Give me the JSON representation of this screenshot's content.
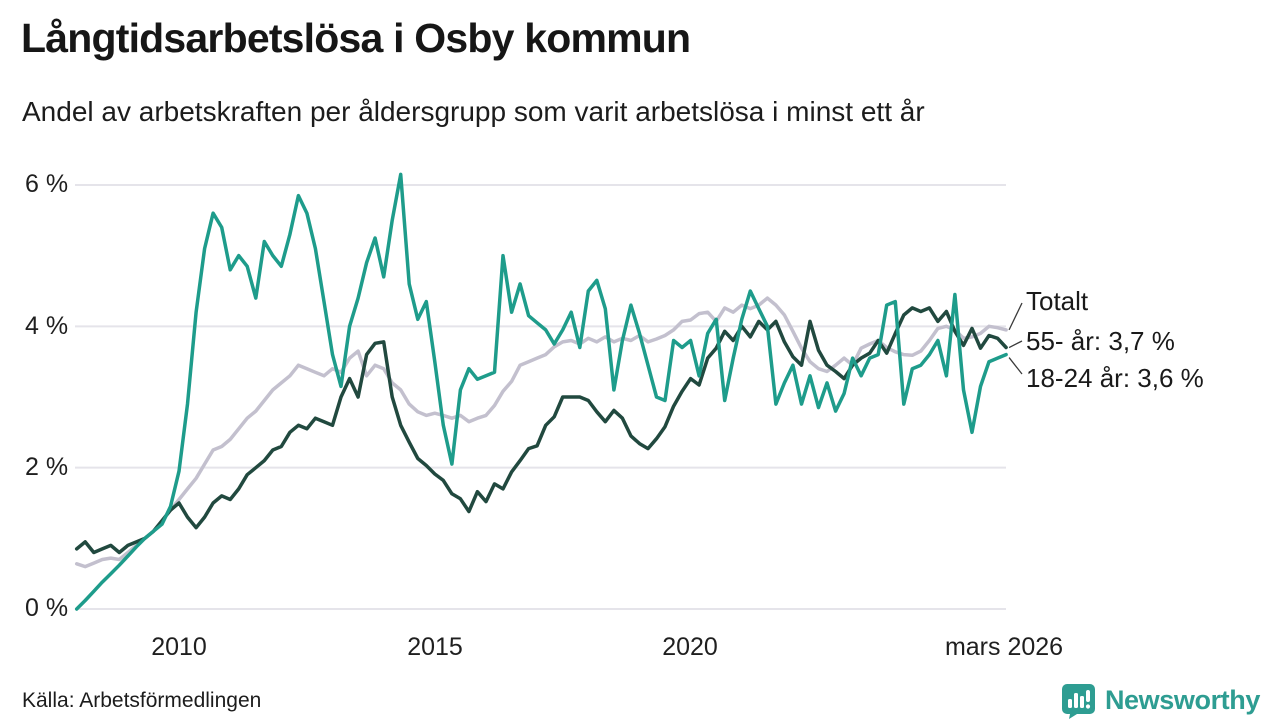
{
  "footer": {
    "brand": "Newsworthy"
  },
  "icons": {
    "brand_logo": "speech-bubble-with-bar-chart-and-exclamation"
  },
  "colors": {
    "background": "#ffffff",
    "brand_teal": "#2E9D92",
    "text": "#1a1a1a"
  },
  "chart_data": {
    "type": "line",
    "title": "Långtidsarbetslösa i Osby kommun",
    "subtitle": "Andel av arbetskraften per åldersgrupp som varit arbetslösa i minst ett år",
    "source": "Källa: Arbetsförmedlingen",
    "grid": true,
    "grid_color": "#E5E4EA",
    "legend_position": "right-end-labels",
    "ylim": [
      0,
      6.4
    ],
    "x_start": 2008.0,
    "x_end": 2026.17,
    "x_unit": "year (monthly samples, Jan 2008 – Mar 2026)",
    "y_unit": "percent of labour force",
    "y_ticks": [
      {
        "value": 0,
        "label": "0 %"
      },
      {
        "value": 2,
        "label": "2 %"
      },
      {
        "value": 4,
        "label": "4 %"
      },
      {
        "value": 6,
        "label": "6 %"
      }
    ],
    "x_ticks": [
      {
        "value": 2010,
        "label": "2010"
      },
      {
        "value": 2015,
        "label": "2015"
      },
      {
        "value": 2020,
        "label": "2020"
      },
      {
        "value": 2026.17,
        "label": "mars 2026"
      }
    ],
    "series": [
      {
        "name": "Totalt",
        "end_label": "Totalt",
        "last_value": 3.95,
        "color": "#C3C0CE",
        "values": [
          0.64,
          0.6,
          0.65,
          0.7,
          0.72,
          0.7,
          0.8,
          0.9,
          1,
          1.1,
          1.25,
          1.4,
          1.55,
          1.7,
          1.85,
          2.05,
          2.25,
          2.3,
          2.4,
          2.55,
          2.7,
          2.8,
          2.95,
          3.1,
          3.2,
          3.3,
          3.45,
          3.4,
          3.35,
          3.3,
          3.4,
          3.35,
          3.55,
          3.65,
          3.3,
          3.45,
          3.4,
          3.2,
          3.1,
          2.9,
          2.79,
          2.74,
          2.77,
          2.74,
          2.7,
          2.74,
          2.65,
          2.7,
          2.74,
          2.88,
          3.08,
          3.22,
          3.45,
          3.5,
          3.55,
          3.6,
          3.71,
          3.78,
          3.8,
          3.75,
          3.83,
          3.78,
          3.85,
          3.78,
          3.83,
          3.8,
          3.87,
          3.78,
          3.82,
          3.87,
          3.95,
          4.07,
          4.09,
          4.18,
          4.2,
          4.07,
          4.26,
          4.2,
          4.3,
          4.25,
          4.3,
          4.4,
          4.3,
          4.16,
          3.93,
          3.69,
          3.5,
          3.4,
          3.36,
          3.45,
          3.55,
          3.45,
          3.69,
          3.75,
          3.8,
          3.7,
          3.64,
          3.6,
          3.59,
          3.65,
          3.8,
          3.97,
          4,
          3.95,
          3.83,
          3.85,
          3.9,
          4,
          3.98,
          3.95
        ]
      },
      {
        "name": "55- år",
        "end_label": "55- år: 3,7 %",
        "last_value": 3.7,
        "color": "#21493F",
        "values": [
          0.85,
          0.95,
          0.8,
          0.85,
          0.9,
          0.8,
          0.9,
          0.95,
          1,
          1.1,
          1.25,
          1.4,
          1.5,
          1.3,
          1.15,
          1.3,
          1.5,
          1.6,
          1.55,
          1.7,
          1.9,
          2,
          2.1,
          2.25,
          2.3,
          2.5,
          2.6,
          2.55,
          2.7,
          2.65,
          2.6,
          3,
          3.26,
          3,
          3.6,
          3.76,
          3.78,
          3,
          2.6,
          2.36,
          2.13,
          2.03,
          1.91,
          1.82,
          1.63,
          1.56,
          1.38,
          1.66,
          1.52,
          1.77,
          1.7,
          1.94,
          2.1,
          2.27,
          2.31,
          2.6,
          2.72,
          3,
          3,
          3,
          2.95,
          2.79,
          2.65,
          2.81,
          2.7,
          2.45,
          2.34,
          2.27,
          2.41,
          2.58,
          2.87,
          3.08,
          3.26,
          3.17,
          3.55,
          3.69,
          3.93,
          3.8,
          4,
          3.85,
          4.07,
          3.95,
          4.07,
          3.78,
          3.57,
          3.45,
          4.07,
          3.66,
          3.45,
          3.36,
          3.26,
          3.45,
          3.55,
          3.62,
          3.8,
          3.62,
          3.9,
          4.16,
          4.26,
          4.21,
          4.26,
          4.07,
          4.21,
          3.93,
          3.73,
          3.97,
          3.69,
          3.87,
          3.83,
          3.7
        ]
      },
      {
        "name": "18-24 år",
        "end_label": "18-24 år: 3,6 %",
        "last_value": 3.6,
        "color": "#1E9C8B",
        "values": [
          0,
          0.12,
          0.25,
          0.38,
          0.5,
          0.62,
          0.75,
          0.88,
          1,
          1.1,
          1.2,
          1.45,
          1.95,
          2.9,
          4.2,
          5.1,
          5.6,
          5.4,
          4.8,
          5,
          4.85,
          4.4,
          5.2,
          5,
          4.85,
          5.3,
          5.85,
          5.6,
          5.1,
          4.35,
          3.6,
          3.15,
          4,
          4.4,
          4.9,
          5.25,
          4.7,
          5.5,
          6.15,
          4.6,
          4.1,
          4.35,
          3.5,
          2.6,
          2.05,
          3.1,
          3.4,
          3.25,
          3.3,
          3.35,
          5,
          4.2,
          4.6,
          4.15,
          4.05,
          3.95,
          3.75,
          3.95,
          4.2,
          3.7,
          4.5,
          4.65,
          4.25,
          3.1,
          3.8,
          4.3,
          3.9,
          3.45,
          3,
          2.95,
          3.8,
          3.7,
          3.8,
          3.3,
          3.9,
          4.1,
          2.95,
          3.55,
          4.1,
          4.5,
          4.25,
          4,
          2.9,
          3.2,
          3.45,
          2.9,
          3.3,
          2.85,
          3.2,
          2.8,
          3.05,
          3.55,
          3.3,
          3.55,
          3.6,
          4.3,
          4.35,
          2.9,
          3.4,
          3.45,
          3.6,
          3.8,
          3.3,
          4.45,
          3.1,
          2.5,
          3.15,
          3.5,
          3.55,
          3.6
        ]
      }
    ]
  }
}
